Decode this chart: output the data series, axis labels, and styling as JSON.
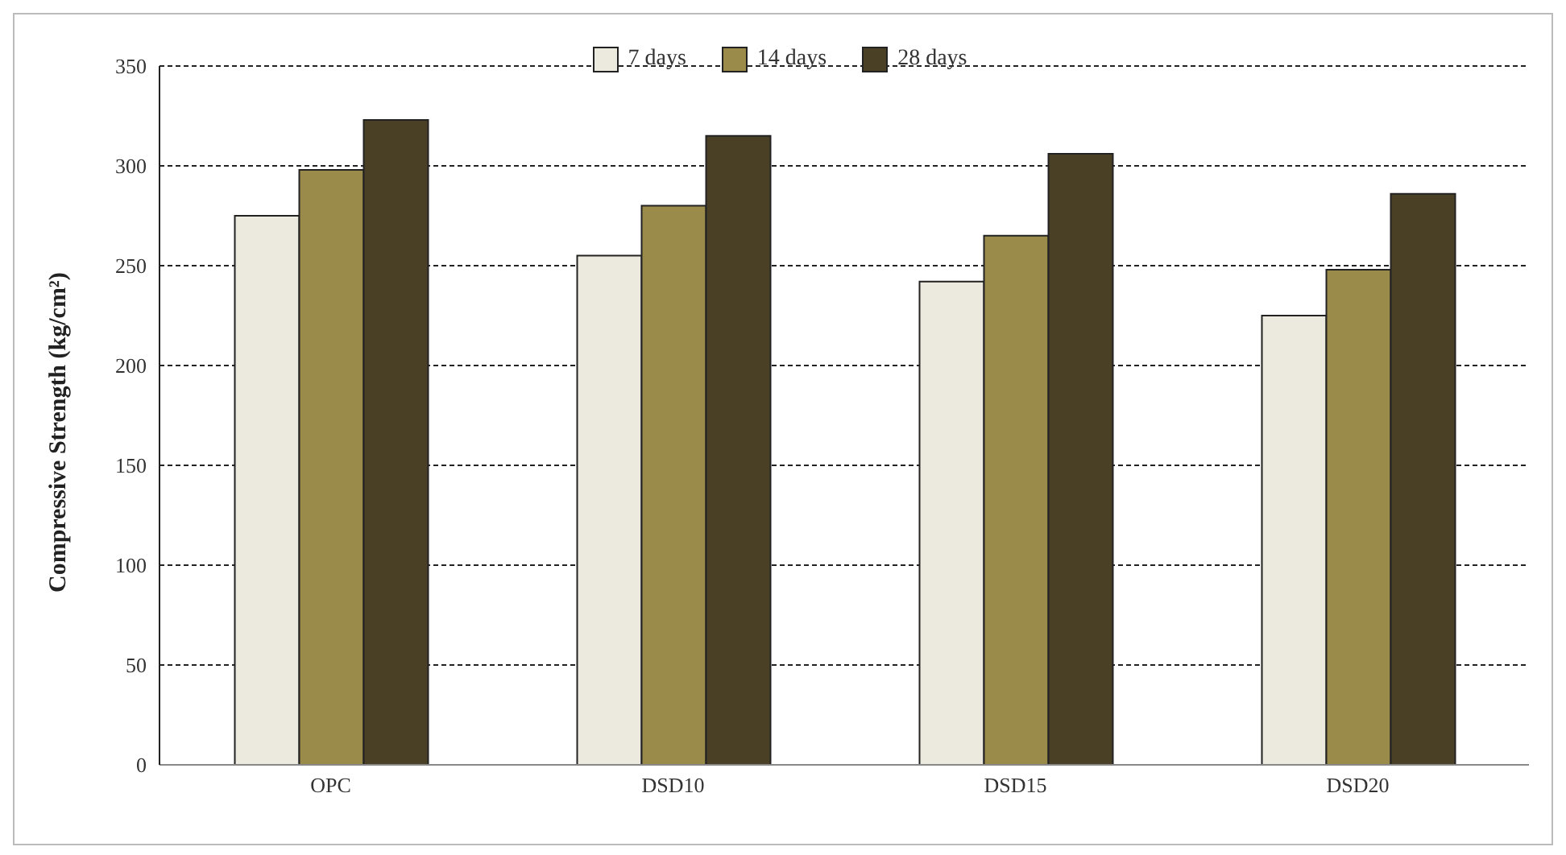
{
  "chart_data": {
    "type": "bar",
    "ylabel": "Compressive Strength (kg/cm²)",
    "categories": [
      "OPC",
      "DSD10",
      "DSD15",
      "DSD20"
    ],
    "series": [
      {
        "name": "7 days",
        "color": "#ece9df",
        "values": [
          275,
          255,
          242,
          225
        ]
      },
      {
        "name": "14 days",
        "color": "#9b8b4a",
        "values": [
          298,
          280,
          265,
          248
        ]
      },
      {
        "name": "28 days",
        "color": "#4a4026",
        "values": [
          323,
          315,
          306,
          286
        ]
      }
    ],
    "ylim": [
      0,
      350
    ],
    "yticks": [
      0,
      50,
      100,
      150,
      200,
      250,
      300,
      350
    ],
    "grid": "y",
    "legend": "top"
  }
}
